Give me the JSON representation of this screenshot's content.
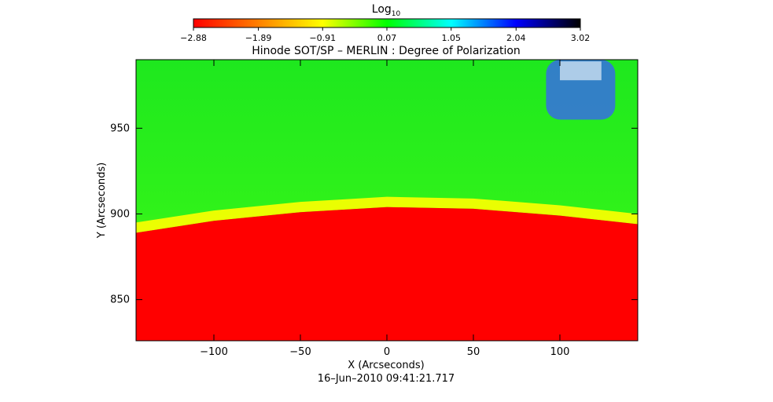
{
  "chart_data": {
    "type": "heatmap",
    "title": "Hinode SOT/SP – MERLIN : Degree of Polarization",
    "xlabel": "X (Arcseconds)",
    "ylabel": "Y (Arcseconds)",
    "timestamp": "16–Jun–2010 09:41:21.717",
    "xlim": [
      -145,
      145
    ],
    "ylim": [
      826,
      990
    ],
    "xticks": [
      -100,
      -50,
      0,
      50,
      100
    ],
    "xtick_labels": [
      "−100",
      "−50",
      "0",
      "50",
      "100"
    ],
    "yticks": [
      850,
      900,
      950
    ],
    "ytick_labels": [
      "850",
      "900",
      "950"
    ],
    "colorbar": {
      "label": "Log",
      "label_subscript": "10",
      "range": [
        -2.88,
        3.02
      ],
      "ticks": [
        -2.88,
        -1.89,
        -0.91,
        0.07,
        1.05,
        2.04,
        3.02
      ],
      "tick_labels": [
        "−2.88",
        "−1.89",
        "−0.91",
        "0.07",
        "1.05",
        "2.04",
        "3.02"
      ],
      "colormap": [
        "#ff0000",
        "#ff7f00",
        "#ffff00",
        "#00ff00",
        "#00ffff",
        "#0000ff",
        "#000000"
      ]
    },
    "regions": {
      "limb_y": [
        [
          -145,
          889
        ],
        [
          -100,
          896
        ],
        [
          -50,
          901
        ],
        [
          0,
          904
        ],
        [
          50,
          903
        ],
        [
          100,
          899
        ],
        [
          145,
          894
        ]
      ],
      "disk_color": "#ff0000",
      "limb_band_color": "#ffff00",
      "off_limb_color": "#00ff00",
      "high_polarization_patch": {
        "x": [
          92,
          132
        ],
        "y": [
          955,
          990
        ],
        "color": "#3a5cff"
      }
    }
  }
}
